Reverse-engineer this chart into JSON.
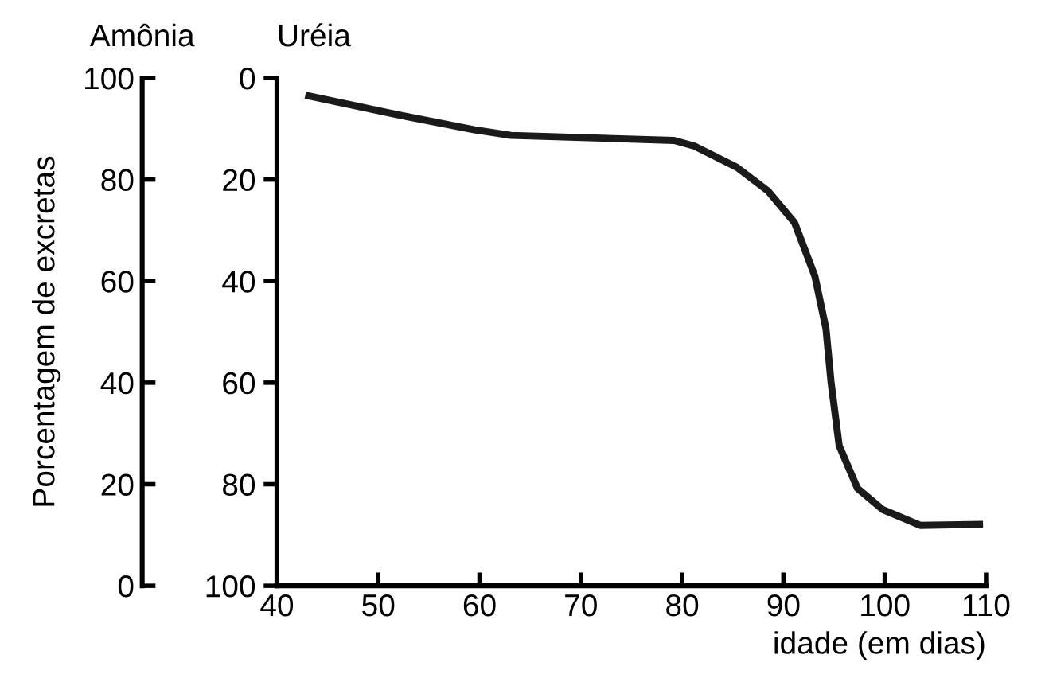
{
  "chart_data": {
    "type": "line",
    "ylabel": "Porcentagem de excretas",
    "xlabel": "idade (em dias)",
    "annotations": [
      "Amônia",
      "Uréia"
    ],
    "ylim": [
      0,
      100
    ],
    "yticks": [
      0,
      20,
      40,
      60,
      80,
      100
    ],
    "y2lim": [
      100,
      0
    ],
    "y2ticks": [
      0,
      20,
      40,
      60,
      80,
      100
    ],
    "xlim": [
      40,
      110
    ],
    "xticks": [
      40,
      50,
      60,
      70,
      80,
      90,
      100,
      110
    ],
    "grid": false,
    "marker": "none",
    "line_style": "solid",
    "series": [
      {
        "color": "#1a1a1a",
        "axis": "y2",
        "x": [
          42.8,
          51.8,
          59.5,
          63.1,
          79.2,
          81.2,
          85.4,
          88.5,
          91.1,
          93.1,
          94.2,
          94.7,
          95.5,
          97.3,
          99.8,
          103.5,
          109.7
        ],
        "values": [
          3.4,
          7.2,
          10.2,
          11.3,
          12.3,
          13.4,
          17.6,
          22.3,
          28.5,
          39,
          49.4,
          59.9,
          72.4,
          80.8,
          85,
          88.1,
          87.9
        ]
      }
    ]
  }
}
